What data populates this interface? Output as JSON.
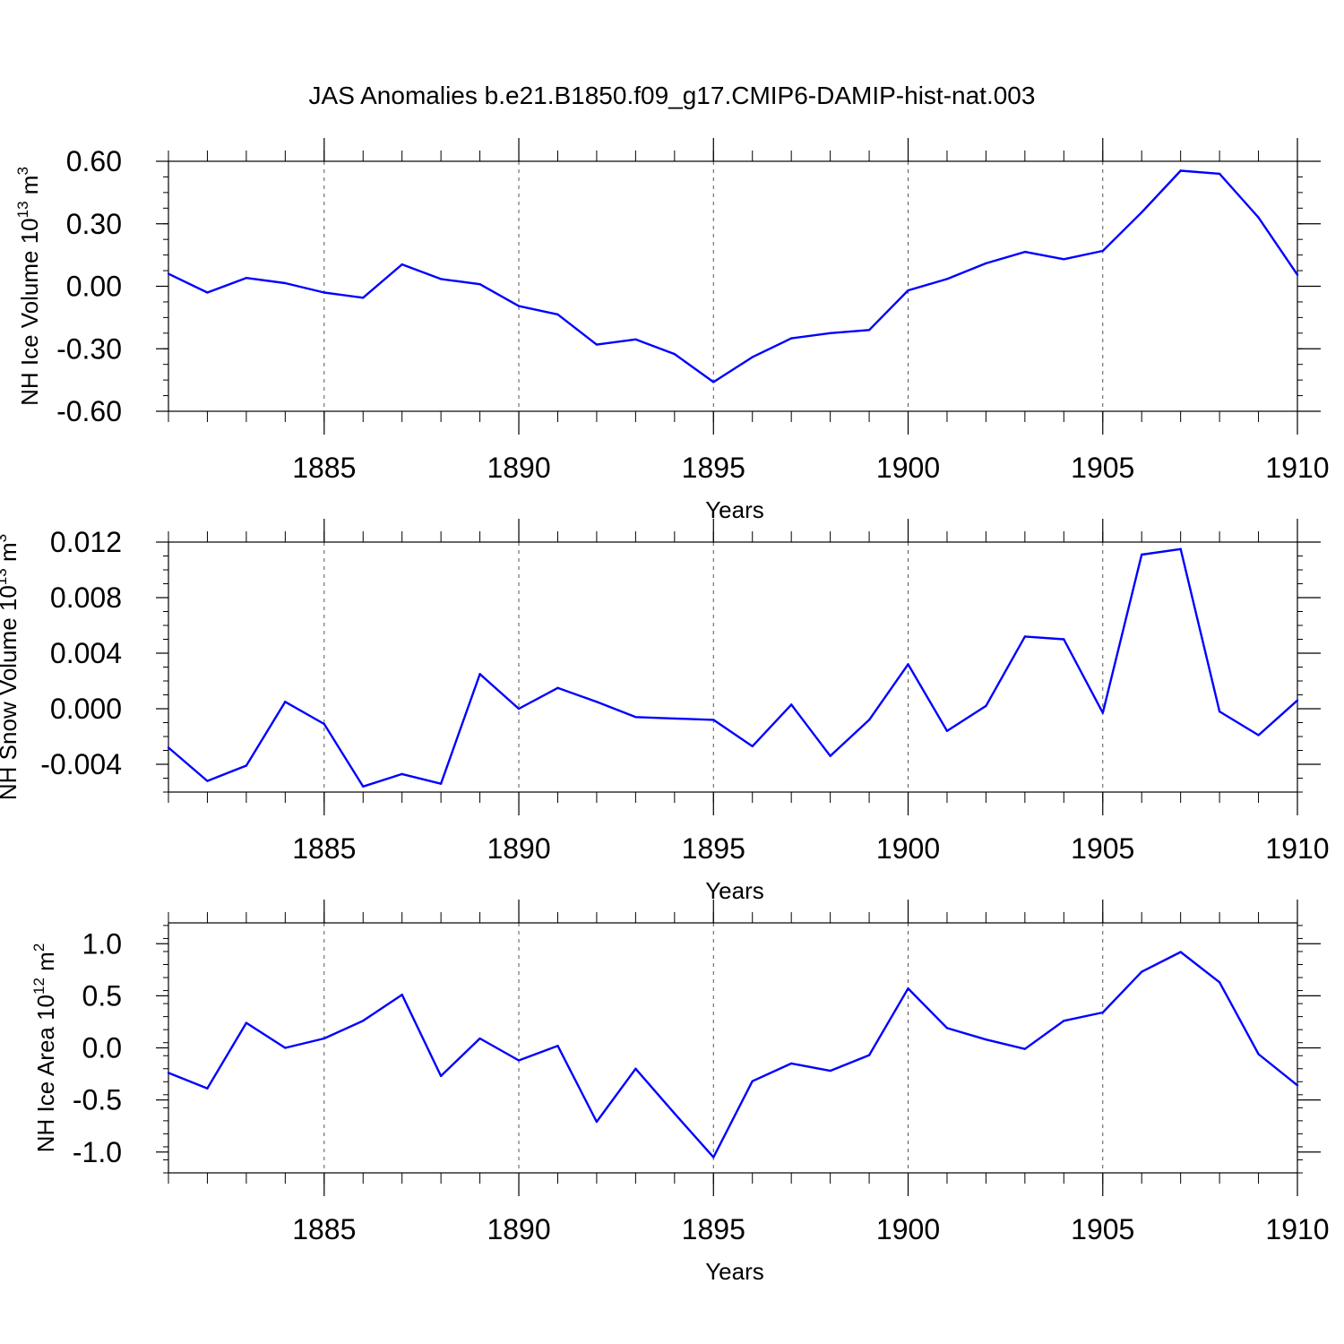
{
  "title": "JAS Anomalies b.e21.B1850.f09_g17.CMIP6-DAMIP-hist-nat.003",
  "colors": {
    "line": "#0000ff",
    "axis": "#000000",
    "grid": "#555555"
  },
  "chart_data": [
    {
      "type": "line",
      "ylabel": "NH Ice Volume 10",
      "ylabel_exp": "13",
      "ylabel_unit": "m",
      "ylabel_unit_exp": "3",
      "xlabel": "Years",
      "xlim": [
        1881,
        1910
      ],
      "ylim": [
        -0.6,
        0.6
      ],
      "yticks": [
        -0.6,
        -0.3,
        0.0,
        0.3,
        0.6
      ],
      "ytick_labels": [
        "-0.60",
        "-0.30",
        "0.00",
        "0.30",
        "0.60"
      ],
      "xticks": [
        1885,
        1890,
        1895,
        1900,
        1905,
        1910
      ],
      "xtick_labels": [
        "1885",
        "1890",
        "1895",
        "1900",
        "1905",
        "1910"
      ],
      "grid": "vertical-dashed",
      "x": [
        1881,
        1882,
        1883,
        1884,
        1885,
        1886,
        1887,
        1888,
        1889,
        1890,
        1891,
        1892,
        1893,
        1894,
        1895,
        1896,
        1897,
        1898,
        1899,
        1900,
        1901,
        1902,
        1903,
        1904,
        1905,
        1906,
        1907,
        1908,
        1909,
        1910
      ],
      "values": [
        0.06,
        -0.03,
        0.04,
        0.015,
        -0.03,
        -0.055,
        0.105,
        0.035,
        0.01,
        -0.095,
        -0.135,
        -0.28,
        -0.255,
        -0.325,
        -0.46,
        -0.34,
        -0.25,
        -0.225,
        -0.21,
        -0.02,
        0.035,
        0.11,
        0.165,
        0.13,
        0.17,
        0.355,
        0.555,
        0.54,
        0.33,
        0.055
      ]
    },
    {
      "type": "line",
      "ylabel": "NH Snow Volume 10",
      "ylabel_exp": "13",
      "ylabel_unit": "m",
      "ylabel_unit_exp": "3",
      "xlabel": "Years",
      "xlim": [
        1881,
        1910
      ],
      "ylim": [
        -0.006,
        0.012
      ],
      "yticks": [
        -0.004,
        0.0,
        0.004,
        0.008,
        0.012
      ],
      "ytick_labels": [
        "-0.004",
        "0.000",
        "0.004",
        "0.008",
        "0.012"
      ],
      "xticks": [
        1885,
        1890,
        1895,
        1900,
        1905,
        1910
      ],
      "xtick_labels": [
        "1885",
        "1890",
        "1895",
        "1900",
        "1905",
        "1910"
      ],
      "grid": "vertical-dashed",
      "x": [
        1881,
        1882,
        1883,
        1884,
        1885,
        1886,
        1887,
        1888,
        1889,
        1890,
        1891,
        1892,
        1893,
        1894,
        1895,
        1896,
        1897,
        1898,
        1899,
        1900,
        1901,
        1902,
        1903,
        1904,
        1905,
        1906,
        1907,
        1908,
        1909,
        1910
      ],
      "values": [
        -0.0028,
        -0.0052,
        -0.0041,
        0.0005,
        -0.0011,
        -0.0056,
        -0.0047,
        -0.0054,
        0.0025,
        0.0,
        0.0015,
        0.0005,
        -0.0006,
        -0.0007,
        -0.0008,
        -0.0027,
        0.0003,
        -0.0034,
        -0.0008,
        0.0032,
        -0.0016,
        0.0002,
        0.0052,
        0.005,
        -0.0003,
        0.0111,
        0.0115,
        -0.0002,
        -0.0019,
        0.0006
      ]
    },
    {
      "type": "line",
      "ylabel": "NH Ice Area 10",
      "ylabel_exp": "12",
      "ylabel_unit": "m",
      "ylabel_unit_exp": "2",
      "xlabel": "Years",
      "xlim": [
        1881,
        1910
      ],
      "ylim": [
        -1.2,
        1.2
      ],
      "yticks": [
        -1.0,
        -0.5,
        0.0,
        0.5,
        1.0
      ],
      "ytick_labels": [
        "-1.0",
        "-0.5",
        "0.0",
        "0.5",
        "1.0"
      ],
      "xticks": [
        1885,
        1890,
        1895,
        1900,
        1905,
        1910
      ],
      "xtick_labels": [
        "1885",
        "1890",
        "1895",
        "1900",
        "1905",
        "1910"
      ],
      "grid": "vertical-dashed",
      "x": [
        1881,
        1882,
        1883,
        1884,
        1885,
        1886,
        1887,
        1888,
        1889,
        1890,
        1891,
        1892,
        1893,
        1894,
        1895,
        1896,
        1897,
        1898,
        1899,
        1900,
        1901,
        1902,
        1903,
        1904,
        1905,
        1906,
        1907,
        1908,
        1909,
        1910
      ],
      "values": [
        -0.24,
        -0.39,
        0.24,
        0.0,
        0.09,
        0.26,
        0.51,
        -0.27,
        0.09,
        -0.12,
        0.02,
        -0.71,
        -0.2,
        -0.63,
        -1.05,
        -0.32,
        -0.15,
        -0.22,
        -0.07,
        0.57,
        0.19,
        0.08,
        -0.01,
        0.26,
        0.34,
        0.73,
        0.92,
        0.63,
        -0.06,
        -0.36
      ]
    }
  ]
}
